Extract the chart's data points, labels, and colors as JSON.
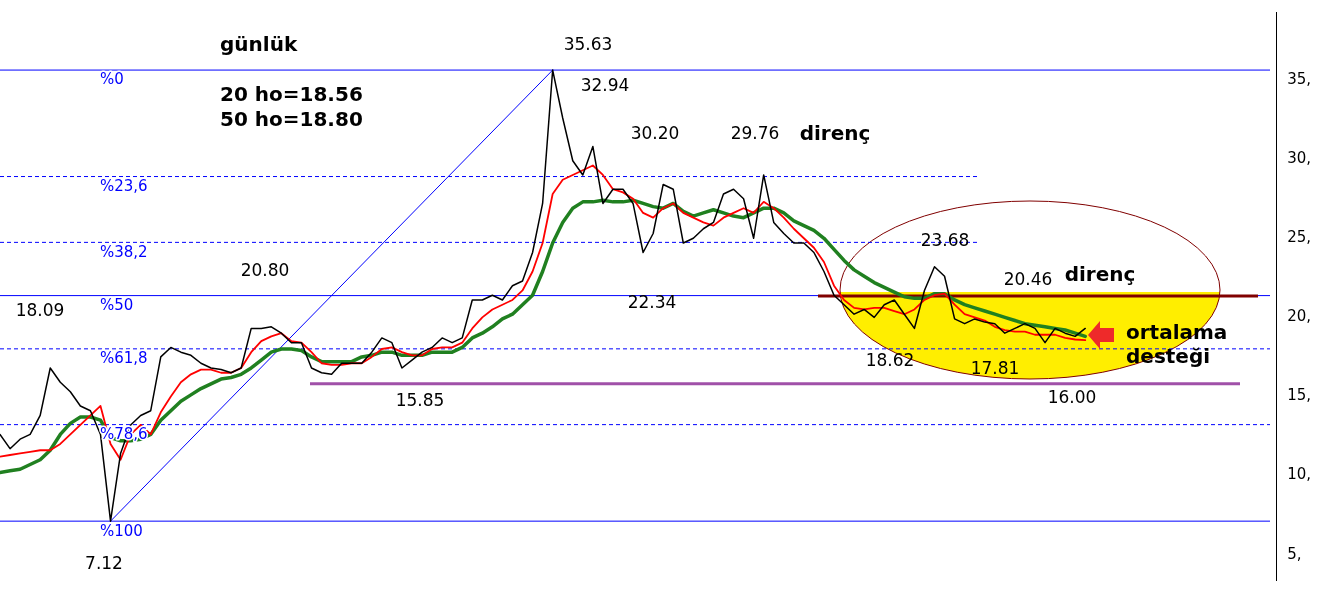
{
  "chart_data": {
    "type": "line",
    "title": "günlük",
    "categories": [
      null,
      null,
      null,
      null,
      null,
      null,
      null,
      null,
      null,
      null,
      null,
      null,
      null,
      null,
      null,
      null,
      null,
      null,
      null,
      null,
      null,
      null,
      null,
      null,
      null,
      null,
      null,
      null,
      null,
      null,
      null,
      null,
      null,
      null,
      null,
      null,
      null,
      null,
      null,
      null,
      null,
      null,
      null,
      null,
      null,
      null,
      null,
      null,
      null,
      null,
      null,
      null,
      null,
      null,
      null,
      null,
      null,
      null,
      null,
      null,
      null,
      null,
      null,
      null,
      null,
      null,
      null,
      null,
      null,
      null,
      null,
      null,
      null,
      null,
      null,
      null,
      null,
      null,
      null,
      null,
      null,
      null,
      null,
      null,
      null,
      null,
      null,
      null,
      null,
      null,
      null,
      null,
      null,
      null,
      null,
      null,
      null,
      null,
      null,
      null,
      null,
      null,
      null,
      null,
      null,
      null,
      null,
      null,
      null,
      null,
      null,
      null,
      null,
      null,
      null,
      null,
      null,
      null,
      null,
      null,
      null,
      null,
      null,
      null,
      null,
      null,
      null,
      null
    ],
    "series": [
      {
        "color": "#000000",
        "values": [
          12.6,
          11.7,
          12.3,
          12.6,
          13.8,
          16.8,
          15.9,
          15.3,
          14.4,
          14.1,
          12.6,
          7.12,
          11.4,
          13.2,
          13.8,
          14.1,
          17.5,
          18.1,
          17.8,
          17.6,
          17.1,
          16.8,
          16.7,
          16.5,
          16.8,
          19.3,
          19.3,
          19.4,
          19.0,
          18.4,
          18.4,
          16.8,
          16.5,
          16.4,
          17.1,
          17.1,
          17.1,
          17.8,
          18.7,
          18.4,
          16.8,
          17.3,
          17.8,
          18.1,
          18.7,
          18.4,
          18.7,
          21.1,
          21.1,
          21.4,
          21.1,
          22.0,
          22.3,
          24.1,
          27.2,
          35.63,
          32.6,
          29.9,
          29.0,
          30.8,
          27.2,
          28.1,
          28.1,
          27.2,
          24.1,
          25.3,
          28.4,
          28.1,
          24.7,
          25.0,
          25.6,
          26.0,
          27.8,
          28.1,
          27.5,
          25.0,
          29.0,
          26.0,
          25.3,
          24.7,
          24.7,
          24.1,
          22.9,
          21.4,
          20.8,
          20.2,
          20.5,
          20.0,
          20.8,
          21.1,
          20.2,
          19.3,
          21.7,
          23.2,
          22.6,
          19.9,
          19.6,
          19.9,
          19.7,
          19.6,
          19.0,
          19.3,
          19.6,
          19.3,
          18.4,
          19.3,
          19.0,
          18.8,
          19.3,
          null,
          null,
          null,
          null,
          null,
          null,
          null,
          null,
          null,
          null,
          null,
          null,
          null,
          null,
          null,
          null,
          null,
          null,
          null
        ]
      },
      {
        "color": "#ff0000",
        "values": [
          11.2,
          11.3,
          11.4,
          11.5,
          11.6,
          11.6,
          12.0,
          12.6,
          13.2,
          13.8,
          14.4,
          12.0,
          11.0,
          12.6,
          13.2,
          12.6,
          14.0,
          15.0,
          15.9,
          16.4,
          16.7,
          16.7,
          16.5,
          16.5,
          16.8,
          17.8,
          18.5,
          18.8,
          19.0,
          18.5,
          18.4,
          17.8,
          17.1,
          17.0,
          17.0,
          17.1,
          17.1,
          17.5,
          18.0,
          18.1,
          17.8,
          17.6,
          17.6,
          18.0,
          18.1,
          18.1,
          18.4,
          19.3,
          20.0,
          20.5,
          20.8,
          21.1,
          21.7,
          22.9,
          24.7,
          27.8,
          28.7,
          29.0,
          29.3,
          29.6,
          29.0,
          28.1,
          27.9,
          27.5,
          26.6,
          26.3,
          26.9,
          27.2,
          26.6,
          26.3,
          26.0,
          25.8,
          26.3,
          26.6,
          26.9,
          26.6,
          27.3,
          26.9,
          26.3,
          25.6,
          25.0,
          24.4,
          23.5,
          22.0,
          21.1,
          20.6,
          20.5,
          20.6,
          20.6,
          20.4,
          20.2,
          20.5,
          21.1,
          21.4,
          21.5,
          20.8,
          20.2,
          20.0,
          19.8,
          19.4,
          19.2,
          19.1,
          19.1,
          18.9,
          18.9,
          18.9,
          18.7,
          18.6,
          18.56,
          null,
          null,
          null,
          null,
          null,
          null,
          null,
          null,
          null,
          null,
          null,
          null,
          null,
          null,
          null,
          null,
          null,
          null,
          null
        ]
      },
      {
        "color": "#208020",
        "values": [
          10.2,
          10.3,
          10.4,
          10.7,
          11.0,
          11.6,
          12.6,
          13.3,
          13.7,
          13.7,
          13.5,
          12.4,
          12.2,
          12.2,
          12.3,
          12.6,
          13.5,
          14.1,
          14.7,
          15.1,
          15.5,
          15.8,
          16.1,
          16.2,
          16.4,
          16.8,
          17.3,
          17.8,
          18.0,
          18.0,
          17.9,
          17.5,
          17.2,
          17.2,
          17.2,
          17.2,
          17.5,
          17.6,
          17.8,
          17.8,
          17.6,
          17.6,
          17.6,
          17.8,
          17.8,
          17.8,
          18.1,
          18.7,
          19.0,
          19.4,
          19.9,
          20.2,
          20.8,
          21.4,
          22.9,
          24.7,
          26.0,
          26.9,
          27.3,
          27.3,
          27.4,
          27.3,
          27.3,
          27.4,
          27.2,
          27.0,
          26.9,
          27.2,
          26.7,
          26.4,
          26.6,
          26.8,
          26.6,
          26.4,
          26.3,
          26.6,
          26.9,
          26.9,
          26.6,
          26.1,
          25.8,
          25.5,
          25.0,
          24.3,
          23.6,
          23.0,
          22.6,
          22.2,
          21.9,
          21.6,
          21.3,
          21.2,
          21.2,
          21.5,
          21.5,
          21.1,
          20.8,
          20.6,
          20.4,
          20.2,
          20.0,
          19.8,
          19.6,
          19.5,
          19.4,
          19.3,
          19.2,
          19.0,
          18.8,
          null,
          null,
          null,
          null,
          null,
          null,
          null,
          null,
          null,
          null,
          null,
          null,
          null,
          null,
          null,
          null,
          null,
          null,
          null
        ]
      },
      {
        "color": "#0000ff",
        "values": [
          null,
          null,
          null,
          null,
          null,
          null,
          null,
          null,
          null,
          null,
          null,
          7.12,
          null,
          null,
          null,
          null,
          null,
          null,
          null,
          null,
          null,
          null,
          null,
          null,
          null,
          null,
          null,
          null,
          null,
          null,
          null,
          null,
          null,
          null,
          null,
          null,
          null,
          null,
          null,
          null,
          null,
          null,
          null,
          null,
          null,
          null,
          null,
          null,
          null,
          null,
          null,
          null,
          null,
          null,
          null,
          35.63,
          null,
          null,
          null,
          null,
          null,
          null,
          null,
          null,
          null,
          null,
          null,
          null,
          null,
          null,
          null,
          null,
          null,
          null,
          null,
          null,
          null,
          null,
          null,
          null,
          null,
          null,
          null,
          null,
          null,
          null,
          null,
          null,
          null,
          null,
          null,
          null,
          null,
          null,
          null,
          null,
          null,
          null,
          null,
          null,
          null,
          null,
          null,
          null,
          null,
          null,
          null,
          null,
          null,
          null,
          null,
          null,
          null,
          null,
          null,
          null,
          null,
          null,
          null,
          null,
          null,
          null,
          null,
          null,
          null,
          null,
          null,
          null
        ]
      }
    ],
    "ylim": [
      3.4,
      39.3
    ],
    "yticks": [
      {
        "value": 5,
        "label": "5,"
      },
      {
        "value": 10,
        "label": "10,"
      },
      {
        "value": 15,
        "label": "15,"
      },
      {
        "value": 20,
        "label": "20,"
      },
      {
        "value": 25,
        "label": "25,"
      },
      {
        "value": 30,
        "label": "30,"
      },
      {
        "value": 35,
        "label": "35,"
      }
    ],
    "ref_lines": [
      {
        "axis": "y",
        "value": 35.63,
        "color": "#0000ff",
        "line_style": "solid"
      },
      {
        "axis": "y",
        "value": 28.9,
        "color": "#0000ff",
        "line_style": "dashed"
      },
      {
        "axis": "y",
        "value": 24.74,
        "color": "#0000ff",
        "line_style": "dashed"
      },
      {
        "axis": "y",
        "value": 21.375,
        "color": "#0000ff",
        "line_style": "solid"
      },
      {
        "axis": "y",
        "value": 18.01,
        "color": "#0000ff",
        "line_style": "dashed"
      },
      {
        "axis": "y",
        "value": 13.22,
        "color": "#0000ff",
        "line_style": "dashed"
      },
      {
        "axis": "y",
        "value": 7.12,
        "color": "#0000ff",
        "line_style": "solid"
      },
      {
        "axis": "y",
        "value": 21.35,
        "color": "#800000",
        "line_style": "solid"
      },
      {
        "axis": "y",
        "value": 15.8,
        "color": "#a050a8",
        "line_style": "solid"
      }
    ],
    "annotations": [
      "20 ho=18.56",
      "50 ho=18.80",
      "35.63",
      "32.94",
      "30.20",
      "29.76",
      "direnç",
      "23.68",
      "20.46",
      "direnç",
      "22.34",
      "20.80",
      "18.09",
      "7.12",
      "15.85",
      "18.62",
      "17.81",
      "16.00",
      "ortalama desteği",
      {
        "text": "%0",
        "y": 35.63
      },
      {
        "text": "%23,6",
        "y": 28.9
      },
      {
        "text": "%38,2",
        "y": 24.74
      },
      {
        "text": "%50",
        "y": 21.375
      },
      {
        "text": "%61,8",
        "y": 18.01
      },
      {
        "text": "%78,6",
        "y": 13.22
      },
      {
        "text": "%100",
        "y": 7.12
      }
    ],
    "tick_labels": "y",
    "grid": false,
    "legend": false,
    "marker": "none",
    "line_style": "solid"
  }
}
